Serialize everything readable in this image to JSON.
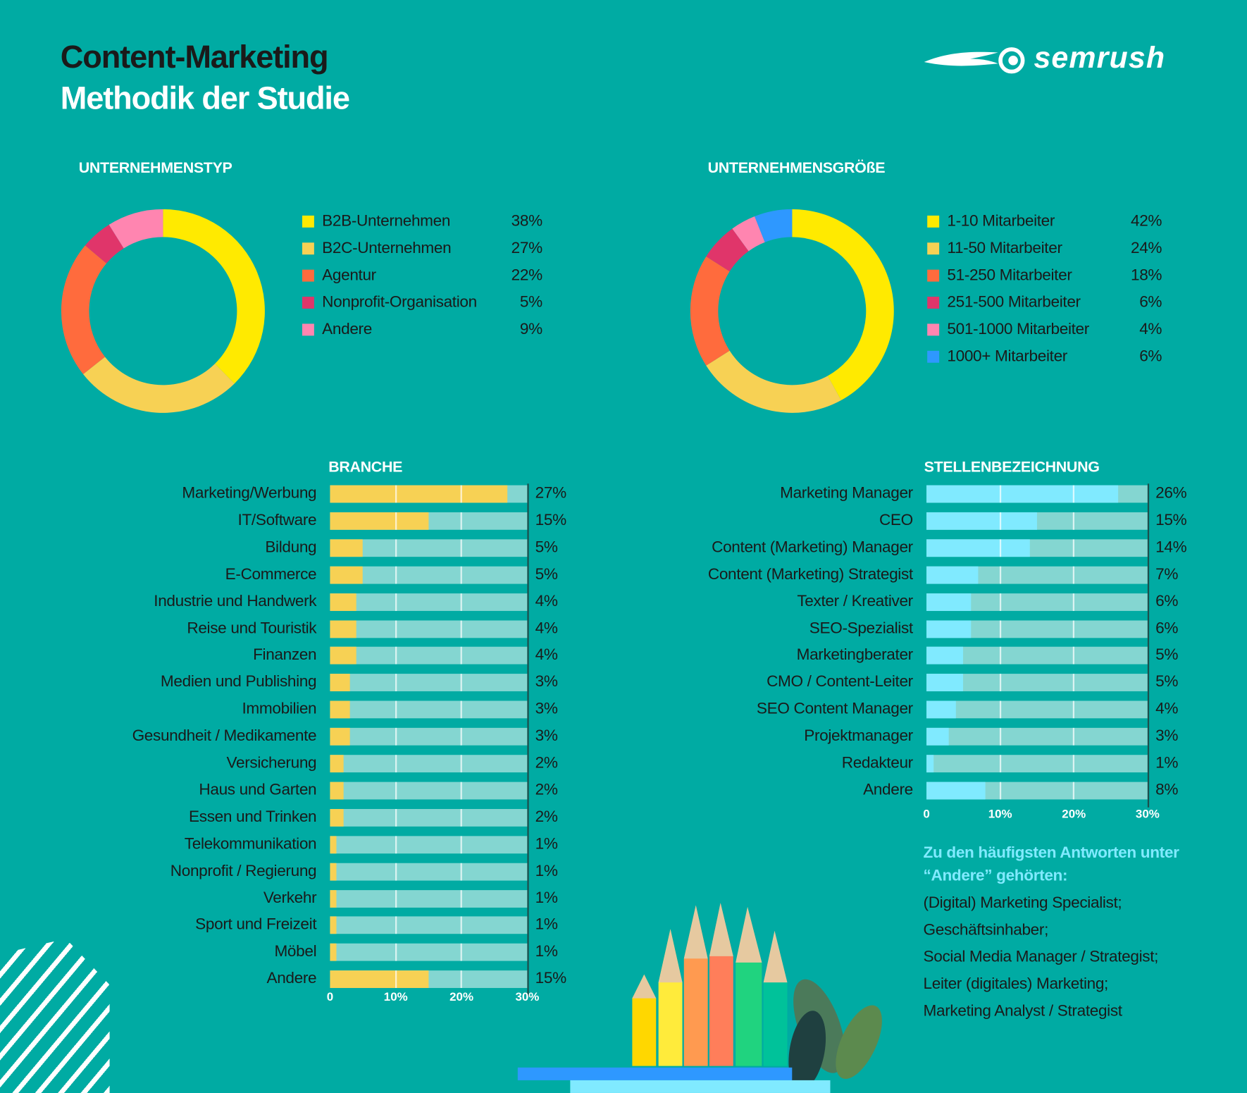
{
  "header": {
    "title": "Content-Marketing",
    "subtitle": "Methodik der Studie",
    "logo_text": "semrush"
  },
  "colors": {
    "background": "#00aba3",
    "track": "#84d6d1",
    "branche_bar": "#f7d154",
    "stellen_bar": "#80eaff"
  },
  "chart_data": [
    {
      "type": "pie",
      "title": "UNTERNEHMENSTYP",
      "donut": true,
      "labels": [
        "B2B-Unternehmen",
        "B2C-Unternehmen",
        "Agentur",
        "Nonprofit-Organisation",
        "Andere"
      ],
      "values": [
        38,
        27,
        22,
        5,
        9
      ],
      "value_labels": [
        "38%",
        "27%",
        "22%",
        "5%",
        "9%"
      ],
      "colors": [
        "#ffea00",
        "#f7d154",
        "#ff6b3d",
        "#e0356a",
        "#ff85b0"
      ],
      "legend": "right"
    },
    {
      "type": "pie",
      "title": "UNTERNEHMENSGRÖßE",
      "donut": true,
      "labels": [
        "1-10 Mitarbeiter",
        "11-50 Mitarbeiter",
        "51-250 Mitarbeiter",
        "251-500 Mitarbeiter",
        "501-1000 Mitarbeiter",
        "1000+ Mitarbeiter"
      ],
      "values": [
        42,
        24,
        18,
        6,
        4,
        6
      ],
      "value_labels": [
        "42%",
        "24%",
        "18%",
        "6%",
        "4%",
        "6%"
      ],
      "colors": [
        "#ffea00",
        "#f7d154",
        "#ff6b3d",
        "#e0356a",
        "#ff85b0",
        "#2e98ff"
      ],
      "legend": "right"
    },
    {
      "type": "bar",
      "orientation": "horizontal",
      "title": "BRANCHE",
      "categories": [
        "Marketing/Werbung",
        "IT/Software",
        "Bildung",
        "E-Commerce",
        "Industrie und Handwerk",
        "Reise und Touristik",
        "Finanzen",
        "Medien und Publishing",
        "Immobilien",
        "Gesundheit / Medikamente",
        "Versicherung",
        "Haus und Garten",
        "Essen und Trinken",
        "Telekommunikation",
        "Nonprofit / Regierung",
        "Verkehr",
        "Sport und Freizeit",
        "Möbel",
        "Andere"
      ],
      "values": [
        27,
        15,
        5,
        5,
        4,
        4,
        4,
        3,
        3,
        3,
        2,
        2,
        2,
        1,
        1,
        1,
        1,
        1,
        15
      ],
      "value_labels": [
        "27%",
        "15%",
        "5%",
        "5%",
        "4%",
        "4%",
        "4%",
        "3%",
        "3%",
        "3%",
        "2%",
        "2%",
        "2%",
        "1%",
        "1%",
        "1%",
        "1%",
        "1%",
        "15%"
      ],
      "xlim": [
        0,
        30
      ],
      "xticks": [
        "0",
        "10%",
        "20%",
        "30%"
      ],
      "grid": true
    },
    {
      "type": "bar",
      "orientation": "horizontal",
      "title": "STELLENBEZEICHNUNG",
      "categories": [
        "Marketing Manager",
        "CEO",
        "Content (Marketing) Manager",
        "Content (Marketing) Strategist",
        "Texter / Kreativer",
        "SEO-Spezialist",
        "Marketingberater",
        "CMO / Content-Leiter",
        "SEO Content Manager",
        "Projektmanager",
        "Redakteur",
        "Andere"
      ],
      "values": [
        26,
        15,
        14,
        7,
        6,
        6,
        5,
        5,
        4,
        3,
        1,
        8
      ],
      "value_labels": [
        "26%",
        "15%",
        "14%",
        "7%",
        "6%",
        "6%",
        "5%",
        "5%",
        "4%",
        "3%",
        "1%",
        "8%"
      ],
      "xlim": [
        0,
        30
      ],
      "xticks": [
        "0",
        "10%",
        "20%",
        "30%"
      ],
      "grid": true
    }
  ],
  "note": {
    "heading_line1": "Zu den häufigsten Antworten unter",
    "heading_line2": "“Andere” gehörten:",
    "items": [
      "(Digital) Marketing Specialist;",
      "Geschäftsinhaber;",
      "Social Media Manager / Strategist;",
      "Leiter (digitales) Marketing;",
      "Marketing Analyst / Strategist"
    ]
  }
}
